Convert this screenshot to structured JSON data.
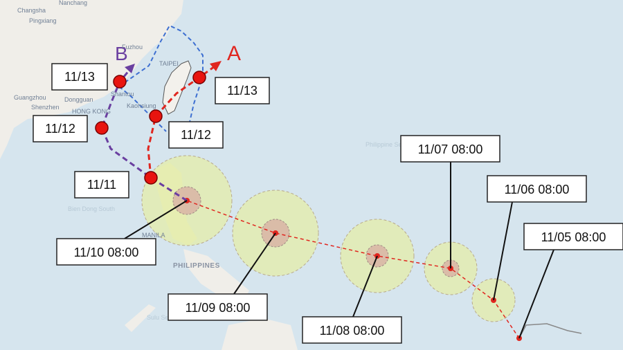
{
  "map": {
    "places": [
      "Nanchang",
      "Changsha",
      "Pingxiang",
      "Fuzhou",
      "TAIPEI",
      "Shantou",
      "Guangzhou",
      "Dongguan",
      "Shenzhen",
      "HONG KONG",
      "Kaohsiung",
      "MANILA",
      "PHILIPPINES",
      "Philippine Sea",
      "Sulu Sea",
      "Bien Dong South"
    ],
    "colors": {
      "sea": "#d6e5ee",
      "land": "#f0eee9",
      "wind_zone": "#e3ecb0",
      "core_zone": "#d9b7a6",
      "track": "#e0261f",
      "route_a": "#e0261f",
      "route_b": "#6a3fa0",
      "cone": "#3d6fd1"
    }
  },
  "routes": {
    "a": {
      "label": "A",
      "points": [
        "11/12",
        "11/13"
      ]
    },
    "b": {
      "label": "B",
      "points": [
        "11/11",
        "11/12",
        "11/13"
      ]
    }
  },
  "route_labels": {
    "b_1113": "11/13",
    "b_1112": "11/12",
    "b_1111": "11/11",
    "a_1113": "11/13",
    "a_1112": "11/12"
  },
  "forecast_points": [
    {
      "label": "11/10 08:00"
    },
    {
      "label": "11/09 08:00"
    },
    {
      "label": "11/08 08:00"
    },
    {
      "label": "11/07 08:00"
    },
    {
      "label": "11/06 08:00"
    },
    {
      "label": "11/05 08:00"
    }
  ]
}
